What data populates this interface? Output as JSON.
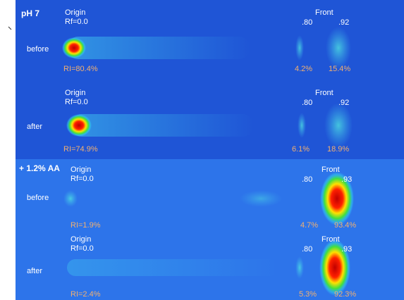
{
  "sections": [
    {
      "label": "pH 7",
      "panels": [
        {
          "condition": "before",
          "origin": "Origin",
          "rf": "Rf=0.0",
          "front": "Front",
          "rf_marks": [
            ".80",
            ".92"
          ],
          "ri": [
            "RI=80.4%",
            "4.2%",
            "15.4%"
          ]
        },
        {
          "condition": "after",
          "origin": "Origin",
          "rf": "Rf=0.0",
          "front": "Front",
          "rf_marks": [
            ".80",
            ".92"
          ],
          "ri": [
            "RI=74.9%",
            "6.1%",
            "18.9%"
          ]
        }
      ]
    },
    {
      "label": "+ 1.2% AA",
      "panels": [
        {
          "condition": "before",
          "origin": "Origin",
          "rf": "Rf=0.0",
          "front": "Front",
          "rf_marks": [
            ".80",
            ".93"
          ],
          "ri": [
            "RI=1.9%",
            "4.7%",
            "93.4%"
          ]
        },
        {
          "condition": "after",
          "origin": "Origin",
          "rf": "Rf=0.0",
          "front": "Front",
          "rf_marks": [
            ".80",
            ".93"
          ],
          "ri": [
            "RI=2.4%",
            "5.3%",
            "92.3%"
          ]
        }
      ]
    }
  ]
}
